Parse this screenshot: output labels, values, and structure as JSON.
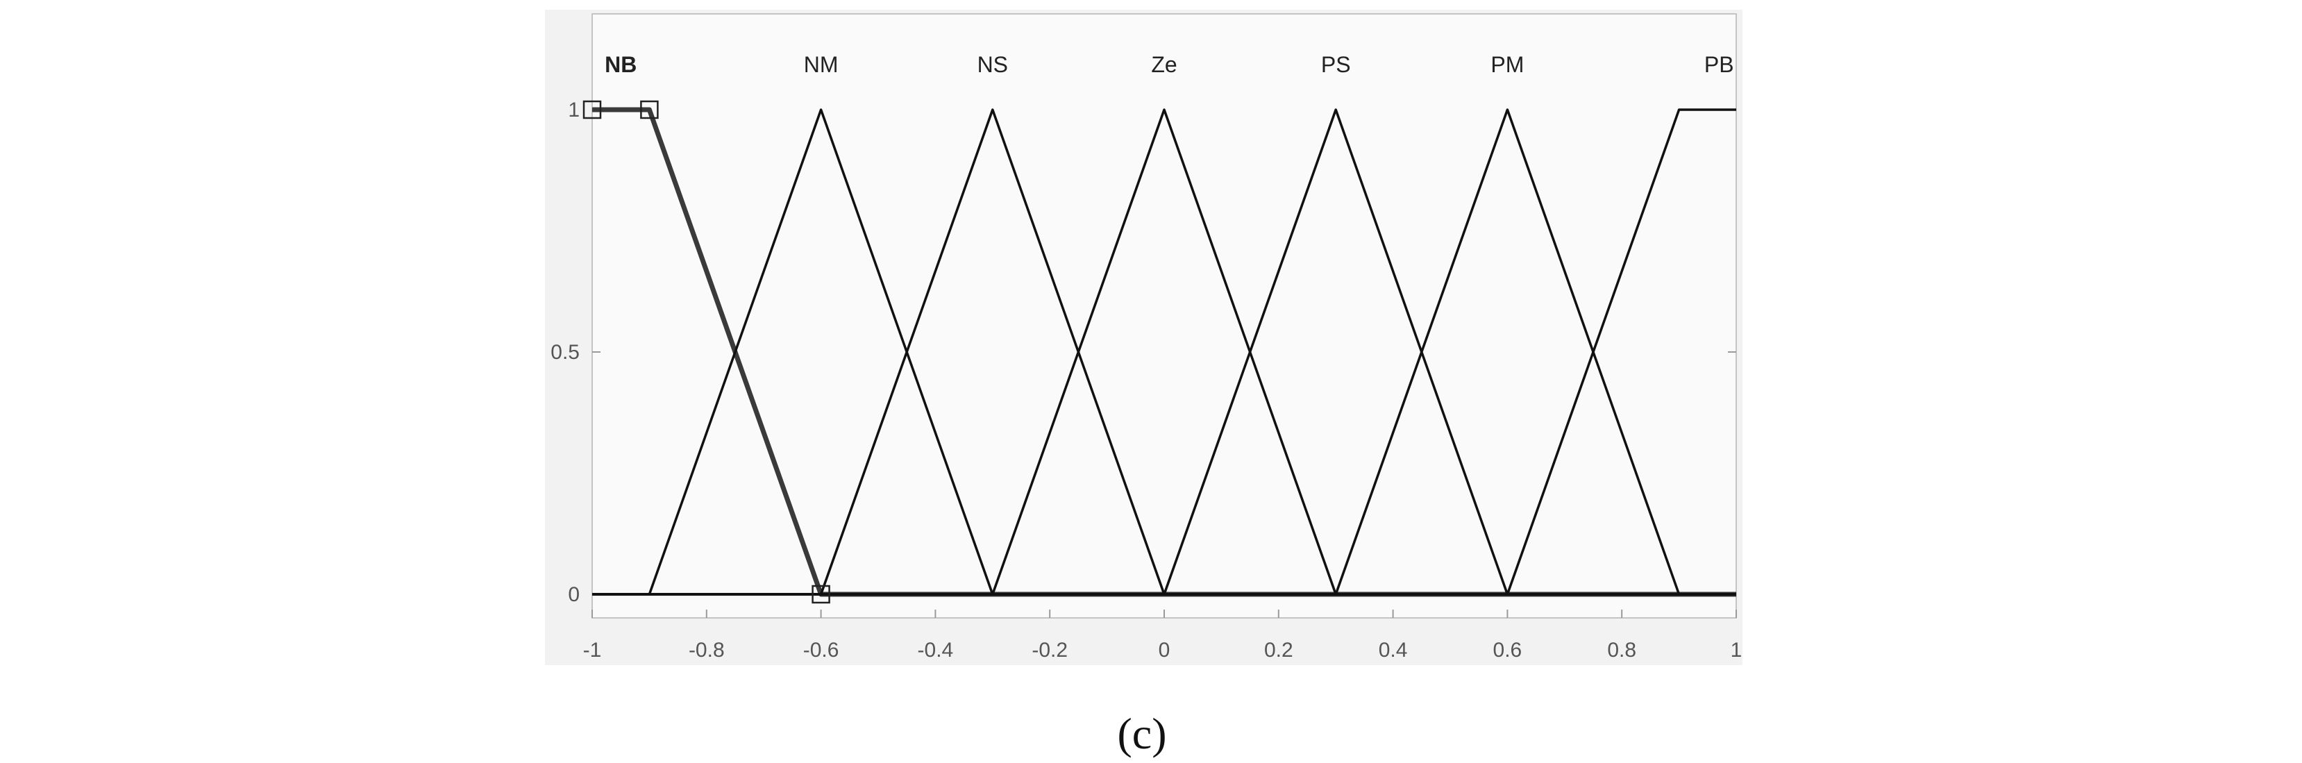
{
  "chart_data": {
    "type": "line",
    "title": "",
    "xlabel": "",
    "ylabel": "",
    "xlim": [
      -1,
      1
    ],
    "ylim": [
      0,
      1
    ],
    "grid": false,
    "x_ticks": [
      -1,
      -0.8,
      -0.6,
      -0.4,
      -0.2,
      0,
      0.2,
      0.4,
      0.6,
      0.8,
      1
    ],
    "x_tick_labels": [
      "-1",
      "-0.8",
      "-0.6",
      "-0.4",
      "-0.2",
      "0",
      "0.2",
      "0.4",
      "0.6",
      "0.8",
      "1"
    ],
    "y_ticks": [
      0,
      0.5,
      1
    ],
    "y_tick_labels": [
      "0",
      "0.5",
      "1"
    ],
    "selected_series": "NB",
    "series": [
      {
        "name": "NB",
        "x": [
          -1,
          -0.9,
          -0.6,
          1
        ],
        "y": [
          1,
          1,
          0,
          0
        ],
        "label_x": -0.95
      },
      {
        "name": "NM",
        "x": [
          -1,
          -0.9,
          -0.6,
          -0.3,
          1
        ],
        "y": [
          0,
          0,
          1,
          0,
          0
        ],
        "label_x": -0.6
      },
      {
        "name": "NS",
        "x": [
          -1,
          -0.6,
          -0.3,
          0,
          1
        ],
        "y": [
          0,
          0,
          1,
          0,
          0
        ],
        "label_x": -0.3
      },
      {
        "name": "Ze",
        "x": [
          -1,
          -0.3,
          0,
          0.3,
          1
        ],
        "y": [
          0,
          0,
          1,
          0,
          0
        ],
        "label_x": 0
      },
      {
        "name": "PS",
        "x": [
          -1,
          0,
          0.3,
          0.6,
          1
        ],
        "y": [
          0,
          0,
          1,
          0,
          0
        ],
        "label_x": 0.3
      },
      {
        "name": "PM",
        "x": [
          -1,
          0.3,
          0.6,
          0.9,
          1
        ],
        "y": [
          0,
          0,
          1,
          0,
          0
        ],
        "label_x": 0.6
      },
      {
        "name": "PB",
        "x": [
          -1,
          0.6,
          0.9,
          1
        ],
        "y": [
          0,
          0,
          1,
          1
        ],
        "label_x": 0.97
      }
    ],
    "caption": "(c)"
  }
}
